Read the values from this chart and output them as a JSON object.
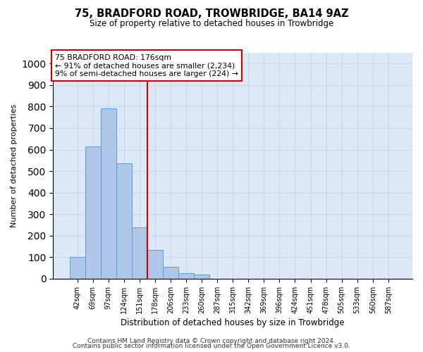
{
  "title": "75, BRADFORD ROAD, TROWBRIDGE, BA14 9AZ",
  "subtitle": "Size of property relative to detached houses in Trowbridge",
  "xlabel": "Distribution of detached houses by size in Trowbridge",
  "ylabel": "Number of detached properties",
  "bar_labels": [
    "42sqm",
    "69sqm",
    "97sqm",
    "124sqm",
    "151sqm",
    "178sqm",
    "206sqm",
    "233sqm",
    "260sqm",
    "287sqm",
    "315sqm",
    "342sqm",
    "369sqm",
    "396sqm",
    "424sqm",
    "451sqm",
    "478sqm",
    "505sqm",
    "533sqm",
    "560sqm",
    "587sqm"
  ],
  "bar_values": [
    100,
    615,
    790,
    535,
    240,
    135,
    55,
    25,
    20,
    0,
    0,
    0,
    0,
    0,
    0,
    0,
    0,
    0,
    0,
    0,
    0
  ],
  "bar_color": "#aec6e8",
  "bar_edge_color": "#5b9bd5",
  "property_line_idx": 5,
  "property_line_label": "75 BRADFORD ROAD: 176sqm",
  "annotation_line1": "← 91% of detached houses are smaller (2,234)",
  "annotation_line2": "9% of semi-detached houses are larger (224) →",
  "ylim": [
    0,
    1050
  ],
  "yticks": [
    0,
    100,
    200,
    300,
    400,
    500,
    600,
    700,
    800,
    900,
    1000
  ],
  "grid_color": "#c8d8e8",
  "background_color": "#dce8f5",
  "annotation_box_color": "#ffffff",
  "annotation_box_edge": "#cc0000",
  "line_color": "#cc0000",
  "footer1": "Contains HM Land Registry data © Crown copyright and database right 2024.",
  "footer2": "Contains public sector information licensed under the Open Government Licence v3.0."
}
